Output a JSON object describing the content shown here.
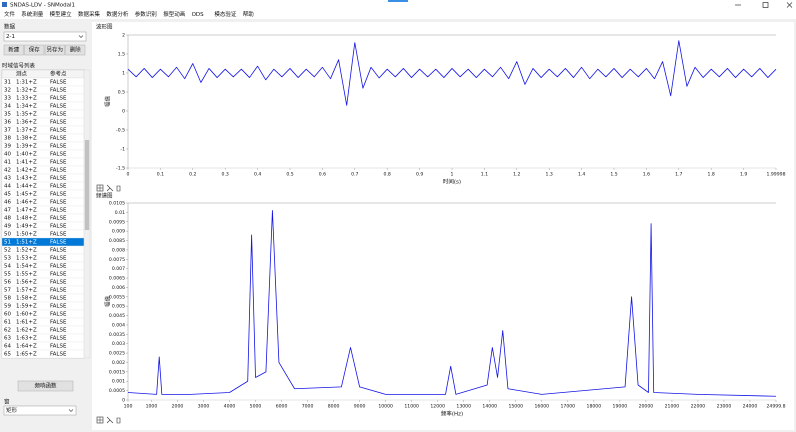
{
  "window": {
    "title": "SNDAS-LDV - SNModal1"
  },
  "menu": [
    "文件",
    "系统测量",
    "模型建立",
    "数据采集",
    "数据分析",
    "参数识别",
    "振型动画",
    "ODS",
    "模态验证",
    "帮助"
  ],
  "left_panel": {
    "data_label": "数据",
    "data_select": "2-1",
    "buttons": [
      "新建",
      "保存",
      "另存为",
      "删除"
    ],
    "list_title": "时域信号列表",
    "table": {
      "columns": [
        "测点",
        "参考点"
      ],
      "selected_row": 20,
      "rows": [
        [
          31,
          "1:31+Z",
          "FALSE"
        ],
        [
          32,
          "1:32+Z",
          "FALSE"
        ],
        [
          33,
          "1:33+Z",
          "FALSE"
        ],
        [
          34,
          "1:34+Z",
          "FALSE"
        ],
        [
          35,
          "1:35+Z",
          "FALSE"
        ],
        [
          36,
          "1:36+Z",
          "FALSE"
        ],
        [
          37,
          "1:37+Z",
          "FALSE"
        ],
        [
          38,
          "1:38+Z",
          "FALSE"
        ],
        [
          39,
          "1:39+Z",
          "FALSE"
        ],
        [
          40,
          "1:40+Z",
          "FALSE"
        ],
        [
          41,
          "1:41+Z",
          "FALSE"
        ],
        [
          42,
          "1:42+Z",
          "FALSE"
        ],
        [
          43,
          "1:43+Z",
          "FALSE"
        ],
        [
          44,
          "1:44+Z",
          "FALSE"
        ],
        [
          45,
          "1:45+Z",
          "FALSE"
        ],
        [
          46,
          "1:46+Z",
          "FALSE"
        ],
        [
          47,
          "1:47+Z",
          "FALSE"
        ],
        [
          48,
          "1:48+Z",
          "FALSE"
        ],
        [
          49,
          "1:49+Z",
          "FALSE"
        ],
        [
          50,
          "1:50+Z",
          "FALSE"
        ],
        [
          51,
          "1:51+Z",
          "FALSE"
        ],
        [
          52,
          "1:52+Z",
          "FALSE"
        ],
        [
          53,
          "1:53+Z",
          "FALSE"
        ],
        [
          54,
          "1:54+Z",
          "FALSE"
        ],
        [
          55,
          "1:55+Z",
          "FALSE"
        ],
        [
          56,
          "1:56+Z",
          "FALSE"
        ],
        [
          57,
          "1:57+Z",
          "FALSE"
        ],
        [
          58,
          "1:58+Z",
          "FALSE"
        ],
        [
          59,
          "1:59+Z",
          "FALSE"
        ],
        [
          60,
          "1:60+Z",
          "FALSE"
        ],
        [
          61,
          "1:61+Z",
          "FALSE"
        ],
        [
          62,
          "1:62+Z",
          "FALSE"
        ],
        [
          63,
          "1:63+Z",
          "FALSE"
        ],
        [
          64,
          "1:64+Z",
          "FALSE"
        ],
        [
          65,
          "1:65+Z",
          "FALSE"
        ]
      ]
    },
    "frf_button": "频响函数",
    "window_label": "窗",
    "window_select": "矩形"
  },
  "chart_data": [
    {
      "type": "line",
      "title": "波形图",
      "xlabel": "时间(s)",
      "ylabel": "幅值",
      "color": "#1414e6",
      "grid": false,
      "xlim": [
        0,
        1.99998
      ],
      "ylim": [
        -1.5,
        2
      ],
      "xticks": [
        0,
        0.1,
        0.2,
        0.3,
        0.4,
        0.5,
        0.6,
        0.7,
        0.8,
        0.9,
        1,
        1.1,
        1.2,
        1.3,
        1.4,
        1.5,
        1.6,
        1.7,
        1.8,
        1.9,
        1.99998
      ],
      "yticks": [
        -1.5,
        -1,
        -0.5,
        0,
        0.5,
        1,
        1.5,
        2
      ],
      "x": [
        0,
        0.025,
        0.05,
        0.075,
        0.1,
        0.125,
        0.15,
        0.175,
        0.2,
        0.225,
        0.25,
        0.275,
        0.3,
        0.325,
        0.35,
        0.375,
        0.4,
        0.425,
        0.45,
        0.475,
        0.5,
        0.525,
        0.55,
        0.575,
        0.6,
        0.625,
        0.65,
        0.675,
        0.7,
        0.725,
        0.75,
        0.775,
        0.8,
        0.825,
        0.85,
        0.875,
        0.9,
        0.925,
        0.95,
        0.975,
        1,
        1.025,
        1.05,
        1.075,
        1.1,
        1.125,
        1.15,
        1.175,
        1.2,
        1.225,
        1.25,
        1.275,
        1.3,
        1.325,
        1.35,
        1.375,
        1.4,
        1.425,
        1.45,
        1.475,
        1.5,
        1.525,
        1.55,
        1.575,
        1.6,
        1.625,
        1.65,
        1.675,
        1.7,
        1.725,
        1.75,
        1.775,
        1.8,
        1.825,
        1.85,
        1.875,
        1.9,
        1.925,
        1.95,
        1.975,
        1.99998
      ],
      "values": [
        1.1,
        0.9,
        1.12,
        0.88,
        1.1,
        0.9,
        1.15,
        0.85,
        1.25,
        0.75,
        1.12,
        0.88,
        1.1,
        0.9,
        1.1,
        0.88,
        1.18,
        0.82,
        1.1,
        0.9,
        1.12,
        0.88,
        1.1,
        0.9,
        1.15,
        0.85,
        1.35,
        0.15,
        1.8,
        0.6,
        1.15,
        0.87,
        1.1,
        0.9,
        1.12,
        0.88,
        1.1,
        0.9,
        1.1,
        0.88,
        1.12,
        0.9,
        1.1,
        0.88,
        1.1,
        0.9,
        1.15,
        0.85,
        1.3,
        0.7,
        1.12,
        0.88,
        1.1,
        0.9,
        1.12,
        0.88,
        1.15,
        0.85,
        1.1,
        0.9,
        1.12,
        0.88,
        1.1,
        0.9,
        1.12,
        0.85,
        1.3,
        0.4,
        1.85,
        0.65,
        1.15,
        0.88,
        1.1,
        0.9,
        1.12,
        0.88,
        1.1,
        0.9,
        1.12,
        0.88,
        1.1
      ]
    },
    {
      "type": "line",
      "title": "频谱图",
      "xlabel": "频率(Hz)",
      "ylabel": "幅值",
      "color": "#1414e6",
      "grid": false,
      "xlim": [
        100,
        24999.8
      ],
      "ylim": [
        0,
        0.0105
      ],
      "xticks": [
        100,
        1000,
        2000,
        3000,
        4000,
        5000,
        6000,
        7000,
        8000,
        9000,
        10000,
        11000,
        12000,
        13000,
        14000,
        15000,
        16000,
        17000,
        18000,
        19000,
        20000,
        21000,
        22000,
        23000,
        24000,
        24999.8
      ],
      "yticks": [
        0,
        0.0005,
        0.001,
        0.0015,
        0.002,
        0.0025,
        0.003,
        0.0035,
        0.004,
        0.0045,
        0.005,
        0.0055,
        0.006,
        0.0065,
        0.007,
        0.0075,
        0.008,
        0.0085,
        0.009,
        0.0095,
        0.01,
        0.0105
      ],
      "x": [
        100,
        1200,
        1300,
        1400,
        2500,
        4000,
        4700,
        4850,
        5000,
        5400,
        5650,
        5900,
        6500,
        8300,
        8650,
        9000,
        10000,
        12300,
        12500,
        12700,
        13900,
        14100,
        14300,
        14500,
        14700,
        16000,
        19200,
        19450,
        19700,
        20100,
        20200,
        20300,
        22000,
        24999.8
      ],
      "values": [
        0.0004,
        0.0003,
        0.0023,
        0.0003,
        0.0003,
        0.0004,
        0.001,
        0.0088,
        0.0012,
        0.0015,
        0.0101,
        0.002,
        0.0006,
        0.0007,
        0.0028,
        0.0007,
        0.0003,
        0.0003,
        0.0018,
        0.0003,
        0.0008,
        0.0028,
        0.0012,
        0.0037,
        0.0006,
        0.0003,
        0.0007,
        0.0055,
        0.0008,
        0.0004,
        0.0094,
        0.0004,
        0.0003,
        0.0002
      ]
    }
  ]
}
